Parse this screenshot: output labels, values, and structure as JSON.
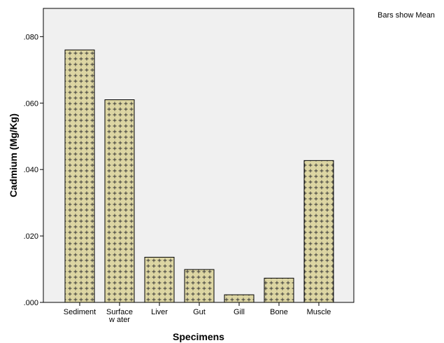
{
  "chart_data": {
    "type": "bar",
    "categories": [
      [
        "Sediment"
      ],
      [
        "Surface",
        "w ater"
      ],
      [
        "Liver"
      ],
      [
        "Gut"
      ],
      [
        "Gill"
      ],
      [
        "Bone"
      ],
      [
        "Muscle"
      ]
    ],
    "values": [
      0.076,
      0.061,
      0.0136,
      0.0099,
      0.0023,
      0.0073,
      0.0427
    ],
    "xlabel": "Specimens",
    "ylabel": "Cadmium (Mg/Kg)",
    "ylim": [
      0,
      0.0885
    ],
    "yticks": [
      0,
      0.02,
      0.04,
      0.06,
      0.08
    ],
    "ytick_labels": [
      ".000",
      ".020",
      ".040",
      ".060",
      ".080"
    ],
    "note": "Bars show Mean",
    "grid": false,
    "colors": {
      "plot_background": "#f0f0f0",
      "bar_fill": "#ddd6a3",
      "bar_pattern": "#333333",
      "bar_edge": "#000000"
    }
  }
}
